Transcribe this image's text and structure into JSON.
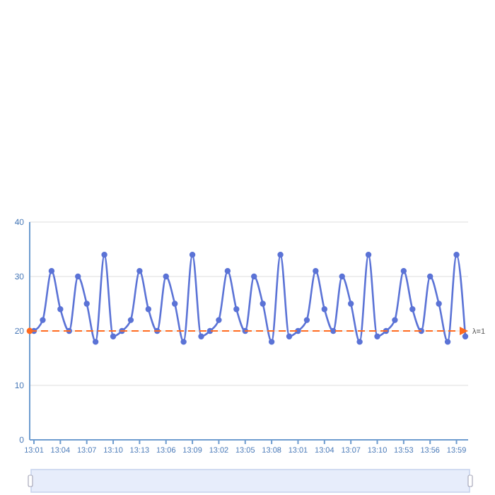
{
  "chart_data": {
    "type": "line",
    "categories": [
      "13:01",
      null,
      null,
      "13:04",
      null,
      null,
      "13:07",
      null,
      null,
      "13:10",
      null,
      null,
      "13:13",
      null,
      null,
      "13:06",
      null,
      null,
      "13:09",
      null,
      null,
      "13:02",
      null,
      null,
      "13:05",
      null,
      null,
      "13:08",
      null,
      null,
      "13:01",
      null,
      null,
      "13:04",
      null,
      null,
      "13:07",
      null,
      null,
      "13:10",
      null,
      null,
      "13:53",
      null,
      null,
      "13:56",
      null,
      null,
      "13:59",
      null
    ],
    "series": [
      {
        "color": "#5b73d6",
        "values": [
          20,
          22,
          31,
          24,
          20,
          30,
          25,
          18,
          34,
          19,
          20,
          22,
          31,
          24,
          20,
          30,
          25,
          18,
          34,
          19,
          20,
          22,
          31,
          24,
          20,
          30,
          25,
          18,
          34,
          19,
          20,
          22,
          31,
          24,
          20,
          30,
          25,
          18,
          34,
          19,
          20,
          22,
          31,
          24,
          20,
          30,
          25,
          18,
          34,
          19
        ]
      }
    ],
    "ylim": [
      0,
      40
    ],
    "yticks": [
      0,
      10,
      20,
      30,
      40
    ],
    "grid": "y",
    "marker": "circle",
    "line_style": "solid",
    "ref_lines": [
      {
        "axis": "y",
        "value": 20,
        "color": "#ff6a1f",
        "line_style": "dashed"
      }
    ],
    "annotations": [
      "λ=1"
    ]
  }
}
